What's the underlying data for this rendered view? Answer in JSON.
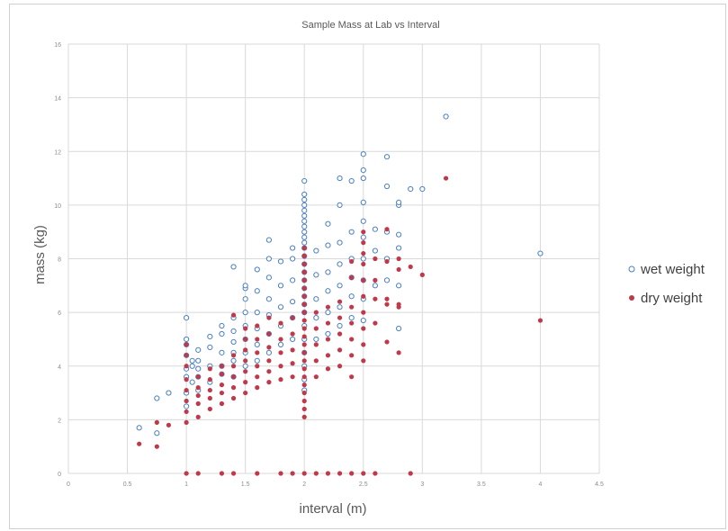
{
  "chart_data": {
    "type": "scatter",
    "title": "Sample Mass at Lab vs Interval",
    "xlabel": "interval (m)",
    "ylabel": "mass (kg)",
    "xlim": [
      0,
      4.5
    ],
    "ylim": [
      0,
      16
    ],
    "x_ticks": [
      "0",
      "0.5",
      "1",
      "1.5",
      "2",
      "2.5",
      "3",
      "3.5",
      "4",
      "4.5"
    ],
    "y_ticks": [
      "0",
      "2",
      "4",
      "6",
      "8",
      "10",
      "12",
      "14",
      "16"
    ],
    "grid": true,
    "legend_position": "right",
    "series": [
      {
        "name": "wet weight",
        "marker": "open-circle",
        "color": "#4a7fc1",
        "points": [
          [
            0.6,
            1.7
          ],
          [
            0.75,
            1.5
          ],
          [
            0.75,
            2.8
          ],
          [
            0.85,
            3.0
          ],
          [
            1.0,
            2.5
          ],
          [
            1.0,
            3.0
          ],
          [
            1.0,
            3.6
          ],
          [
            1.0,
            3.9
          ],
          [
            1.0,
            4.4
          ],
          [
            1.0,
            4.8
          ],
          [
            1.0,
            5.0
          ],
          [
            1.0,
            5.8
          ],
          [
            1.05,
            3.4
          ],
          [
            1.05,
            4.0
          ],
          [
            1.05,
            4.2
          ],
          [
            1.1,
            3.1
          ],
          [
            1.1,
            3.6
          ],
          [
            1.1,
            3.9
          ],
          [
            1.1,
            4.2
          ],
          [
            1.1,
            4.6
          ],
          [
            1.2,
            3.4
          ],
          [
            1.2,
            4.0
          ],
          [
            1.2,
            4.7
          ],
          [
            1.2,
            5.1
          ],
          [
            1.3,
            3.7
          ],
          [
            1.3,
            4.0
          ],
          [
            1.3,
            4.5
          ],
          [
            1.3,
            5.2
          ],
          [
            1.3,
            5.5
          ],
          [
            1.4,
            3.6
          ],
          [
            1.4,
            4.2
          ],
          [
            1.4,
            4.5
          ],
          [
            1.4,
            4.9
          ],
          [
            1.4,
            5.3
          ],
          [
            1.4,
            5.8
          ],
          [
            1.4,
            7.7
          ],
          [
            1.5,
            4.0
          ],
          [
            1.5,
            4.5
          ],
          [
            1.5,
            5.0
          ],
          [
            1.5,
            5.5
          ],
          [
            1.5,
            6.0
          ],
          [
            1.5,
            6.5
          ],
          [
            1.5,
            6.9
          ],
          [
            1.5,
            7.0
          ],
          [
            1.6,
            4.2
          ],
          [
            1.6,
            4.8
          ],
          [
            1.6,
            5.4
          ],
          [
            1.6,
            6.0
          ],
          [
            1.6,
            6.8
          ],
          [
            1.6,
            7.6
          ],
          [
            1.7,
            4.5
          ],
          [
            1.7,
            5.2
          ],
          [
            1.7,
            5.9
          ],
          [
            1.7,
            6.5
          ],
          [
            1.7,
            7.3
          ],
          [
            1.7,
            8.0
          ],
          [
            1.7,
            8.7
          ],
          [
            1.8,
            4.8
          ],
          [
            1.8,
            5.5
          ],
          [
            1.8,
            6.2
          ],
          [
            1.8,
            7.0
          ],
          [
            1.8,
            7.9
          ],
          [
            1.9,
            5.0
          ],
          [
            1.9,
            5.8
          ],
          [
            1.9,
            6.4
          ],
          [
            1.9,
            7.2
          ],
          [
            1.9,
            8.0
          ],
          [
            1.9,
            8.4
          ],
          [
            2.0,
            3.1
          ],
          [
            2.0,
            3.5
          ],
          [
            2.0,
            4.0
          ],
          [
            2.0,
            4.5
          ],
          [
            2.0,
            5.0
          ],
          [
            2.0,
            5.5
          ],
          [
            2.0,
            6.0
          ],
          [
            2.0,
            6.3
          ],
          [
            2.0,
            6.6
          ],
          [
            2.0,
            6.9
          ],
          [
            2.0,
            7.2
          ],
          [
            2.0,
            7.5
          ],
          [
            2.0,
            7.8
          ],
          [
            2.0,
            8.1
          ],
          [
            2.0,
            8.4
          ],
          [
            2.0,
            8.6
          ],
          [
            2.0,
            8.8
          ],
          [
            2.0,
            9.0
          ],
          [
            2.0,
            9.2
          ],
          [
            2.0,
            9.4
          ],
          [
            2.0,
            9.6
          ],
          [
            2.0,
            9.8
          ],
          [
            2.0,
            10.0
          ],
          [
            2.0,
            10.2
          ],
          [
            2.0,
            10.4
          ],
          [
            2.0,
            10.9
          ],
          [
            2.1,
            5.0
          ],
          [
            2.1,
            5.8
          ],
          [
            2.1,
            6.5
          ],
          [
            2.1,
            7.4
          ],
          [
            2.1,
            8.3
          ],
          [
            2.2,
            5.2
          ],
          [
            2.2,
            6.0
          ],
          [
            2.2,
            6.8
          ],
          [
            2.2,
            7.5
          ],
          [
            2.2,
            8.5
          ],
          [
            2.2,
            9.3
          ],
          [
            2.3,
            5.5
          ],
          [
            2.3,
            6.2
          ],
          [
            2.3,
            7.0
          ],
          [
            2.3,
            7.8
          ],
          [
            2.3,
            8.6
          ],
          [
            2.3,
            10.0
          ],
          [
            2.3,
            11.0
          ],
          [
            2.4,
            5.8
          ],
          [
            2.4,
            6.6
          ],
          [
            2.4,
            7.3
          ],
          [
            2.4,
            8.0
          ],
          [
            2.4,
            9.0
          ],
          [
            2.4,
            10.9
          ],
          [
            2.5,
            5.7
          ],
          [
            2.5,
            6.5
          ],
          [
            2.5,
            7.2
          ],
          [
            2.5,
            8.0
          ],
          [
            2.5,
            8.8
          ],
          [
            2.5,
            9.4
          ],
          [
            2.5,
            10.1
          ],
          [
            2.5,
            11.0
          ],
          [
            2.5,
            11.3
          ],
          [
            2.5,
            11.9
          ],
          [
            2.6,
            7.0
          ],
          [
            2.6,
            8.3
          ],
          [
            2.6,
            9.1
          ],
          [
            2.7,
            7.2
          ],
          [
            2.7,
            8.0
          ],
          [
            2.7,
            9.0
          ],
          [
            2.7,
            10.7
          ],
          [
            2.7,
            11.8
          ],
          [
            2.8,
            5.4
          ],
          [
            2.8,
            7.0
          ],
          [
            2.8,
            8.4
          ],
          [
            2.8,
            8.9
          ],
          [
            2.8,
            10.0
          ],
          [
            2.8,
            10.1
          ],
          [
            2.9,
            10.6
          ],
          [
            3.0,
            10.6
          ],
          [
            3.2,
            13.3
          ],
          [
            4.0,
            8.2
          ]
        ]
      },
      {
        "name": "dry weight",
        "marker": "filled-circle",
        "color": "#c0394b",
        "points": [
          [
            0.6,
            1.1
          ],
          [
            0.75,
            1.0
          ],
          [
            0.75,
            1.9
          ],
          [
            0.85,
            1.8
          ],
          [
            1.0,
            1.9
          ],
          [
            1.0,
            2.3
          ],
          [
            1.0,
            2.7
          ],
          [
            1.0,
            3.1
          ],
          [
            1.0,
            3.5
          ],
          [
            1.0,
            4.0
          ],
          [
            1.0,
            4.4
          ],
          [
            1.0,
            4.8
          ],
          [
            1.1,
            2.1
          ],
          [
            1.1,
            2.6
          ],
          [
            1.1,
            2.9
          ],
          [
            1.1,
            3.2
          ],
          [
            1.1,
            3.6
          ],
          [
            1.2,
            2.4
          ],
          [
            1.2,
            2.8
          ],
          [
            1.2,
            3.1
          ],
          [
            1.2,
            3.5
          ],
          [
            1.2,
            3.9
          ],
          [
            1.3,
            2.6
          ],
          [
            1.3,
            3.0
          ],
          [
            1.3,
            3.3
          ],
          [
            1.3,
            3.7
          ],
          [
            1.3,
            4.0
          ],
          [
            1.4,
            2.8
          ],
          [
            1.4,
            3.2
          ],
          [
            1.4,
            3.6
          ],
          [
            1.4,
            4.0
          ],
          [
            1.4,
            4.4
          ],
          [
            1.4,
            5.9
          ],
          [
            1.5,
            3.0
          ],
          [
            1.5,
            3.4
          ],
          [
            1.5,
            3.8
          ],
          [
            1.5,
            4.2
          ],
          [
            1.5,
            4.6
          ],
          [
            1.5,
            5.0
          ],
          [
            1.5,
            5.4
          ],
          [
            1.6,
            3.2
          ],
          [
            1.6,
            3.6
          ],
          [
            1.6,
            4.0
          ],
          [
            1.6,
            4.5
          ],
          [
            1.6,
            5.0
          ],
          [
            1.6,
            5.5
          ],
          [
            1.7,
            3.4
          ],
          [
            1.7,
            3.8
          ],
          [
            1.7,
            4.2
          ],
          [
            1.7,
            4.7
          ],
          [
            1.7,
            5.2
          ],
          [
            1.7,
            5.8
          ],
          [
            1.8,
            3.5
          ],
          [
            1.8,
            4.0
          ],
          [
            1.8,
            4.5
          ],
          [
            1.8,
            5.0
          ],
          [
            1.8,
            5.6
          ],
          [
            1.9,
            3.6
          ],
          [
            1.9,
            4.1
          ],
          [
            1.9,
            4.6
          ],
          [
            1.9,
            5.2
          ],
          [
            1.9,
            5.8
          ],
          [
            2.0,
            2.1
          ],
          [
            2.0,
            2.4
          ],
          [
            2.0,
            2.7
          ],
          [
            2.0,
            3.0
          ],
          [
            2.0,
            3.3
          ],
          [
            2.0,
            3.6
          ],
          [
            2.0,
            3.9
          ],
          [
            2.0,
            4.2
          ],
          [
            2.0,
            4.5
          ],
          [
            2.0,
            4.8
          ],
          [
            2.0,
            5.1
          ],
          [
            2.0,
            5.4
          ],
          [
            2.0,
            5.7
          ],
          [
            2.0,
            6.0
          ],
          [
            2.0,
            6.3
          ],
          [
            2.0,
            6.6
          ],
          [
            2.0,
            6.9
          ],
          [
            2.0,
            7.2
          ],
          [
            2.0,
            7.5
          ],
          [
            2.0,
            7.8
          ],
          [
            2.0,
            8.1
          ],
          [
            2.0,
            8.4
          ],
          [
            2.1,
            3.6
          ],
          [
            2.1,
            4.2
          ],
          [
            2.1,
            4.8
          ],
          [
            2.1,
            5.4
          ],
          [
            2.1,
            6.0
          ],
          [
            2.2,
            3.9
          ],
          [
            2.2,
            4.4
          ],
          [
            2.2,
            5.0
          ],
          [
            2.2,
            5.6
          ],
          [
            2.2,
            6.2
          ],
          [
            2.3,
            4.0
          ],
          [
            2.3,
            4.6
          ],
          [
            2.3,
            5.2
          ],
          [
            2.3,
            5.8
          ],
          [
            2.3,
            6.4
          ],
          [
            2.4,
            3.6
          ],
          [
            2.4,
            4.4
          ],
          [
            2.4,
            5.0
          ],
          [
            2.4,
            5.6
          ],
          [
            2.4,
            6.2
          ],
          [
            2.4,
            7.3
          ],
          [
            2.4,
            7.9
          ],
          [
            2.5,
            4.2
          ],
          [
            2.5,
            4.8
          ],
          [
            2.5,
            5.4
          ],
          [
            2.5,
            6.0
          ],
          [
            2.5,
            6.6
          ],
          [
            2.5,
            7.2
          ],
          [
            2.5,
            7.8
          ],
          [
            2.5,
            8.2
          ],
          [
            2.5,
            8.6
          ],
          [
            2.5,
            9.0
          ],
          [
            2.6,
            5.6
          ],
          [
            2.6,
            6.5
          ],
          [
            2.6,
            7.2
          ],
          [
            2.6,
            8.0
          ],
          [
            2.7,
            4.9
          ],
          [
            2.7,
            6.3
          ],
          [
            2.7,
            6.5
          ],
          [
            2.7,
            7.9
          ],
          [
            2.7,
            9.1
          ],
          [
            2.8,
            4.5
          ],
          [
            2.8,
            6.2
          ],
          [
            2.8,
            6.3
          ],
          [
            2.8,
            7.6
          ],
          [
            2.8,
            8.0
          ],
          [
            2.9,
            7.7
          ],
          [
            3.0,
            7.4
          ],
          [
            3.2,
            11.0
          ],
          [
            4.0,
            5.7
          ],
          [
            1.0,
            0.0
          ],
          [
            1.1,
            0.0
          ],
          [
            1.3,
            0.0
          ],
          [
            1.4,
            0.0
          ],
          [
            1.6,
            0.0
          ],
          [
            1.8,
            0.0
          ],
          [
            1.9,
            0.0
          ],
          [
            2.0,
            0.0
          ],
          [
            2.1,
            0.0
          ],
          [
            2.2,
            0.0
          ],
          [
            2.3,
            0.0
          ],
          [
            2.4,
            0.0
          ],
          [
            2.5,
            0.0
          ],
          [
            2.6,
            0.0
          ],
          [
            2.9,
            0.0
          ]
        ]
      }
    ]
  }
}
